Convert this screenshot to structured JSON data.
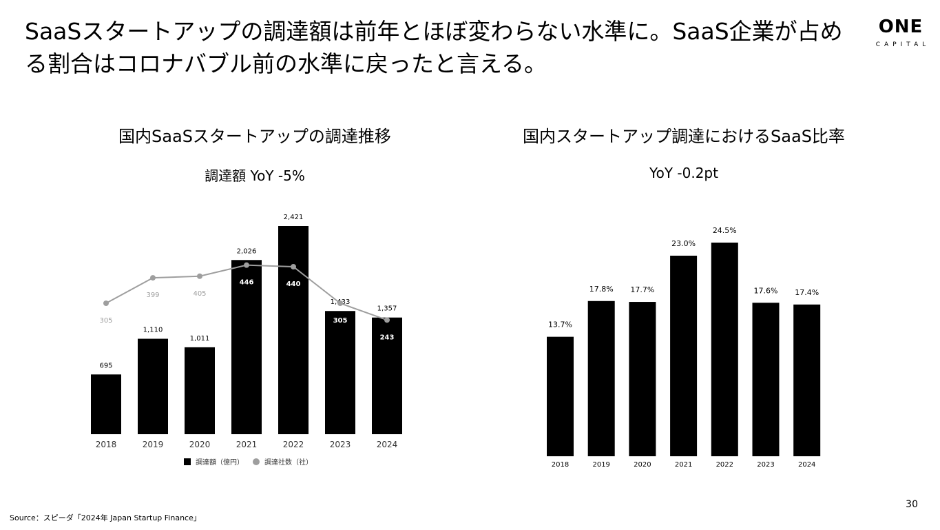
{
  "headline": "SaaSスタートアップの調達額は前年とほぼ変わらない水準に。SaaS企業が占める割合はコロナバブル前の水準に戻ったと言える。",
  "logo": {
    "word": "ONE",
    "sub": "CAPITAL"
  },
  "page_number": "30",
  "source": "Source：スピーダ「2024年 Japan Startup Finance」",
  "chart_data": [
    {
      "type": "bar",
      "title": "国内SaaSスタートアップの調達推移",
      "subtitle": "調達額 YoY -5%",
      "categories": [
        "2018",
        "2019",
        "2020",
        "2021",
        "2022",
        "2023",
        "2024"
      ],
      "series": [
        {
          "name": "調達額（億円）",
          "kind": "bar",
          "values": [
            695,
            1110,
            1011,
            2026,
            2421,
            1433,
            1357
          ],
          "labels": [
            "695",
            "1,110",
            "1,011",
            "2,026",
            "2,421",
            "1,433",
            "1,357"
          ],
          "color": "#000000"
        },
        {
          "name": "調達社数（社）",
          "kind": "line",
          "values": [
            305,
            399,
            405,
            446,
            440,
            305,
            243
          ],
          "labels": [
            "305",
            "399",
            "405",
            "446",
            "440",
            "305",
            "243"
          ],
          "color": "#9e9e9e"
        }
      ],
      "ylim": [
        0,
        2421
      ],
      "y2lim": [
        0,
        446
      ],
      "legend": "bottom",
      "grid": false
    },
    {
      "type": "bar",
      "title": "国内スタートアップ調達におけるSaaS比率",
      "subtitle": "YoY -0.2pt",
      "categories": [
        "2018",
        "2019",
        "2020",
        "2021",
        "2022",
        "2023",
        "2024"
      ],
      "series": [
        {
          "name": "SaaS比率",
          "values": [
            13.7,
            17.8,
            17.7,
            23.0,
            24.5,
            17.6,
            17.4
          ],
          "labels": [
            "13.7%",
            "17.8%",
            "17.7%",
            "23.0%",
            "24.5%",
            "17.6%",
            "17.4%"
          ],
          "color": "#000000"
        }
      ],
      "ylim": [
        0,
        24.5
      ],
      "legend": "none",
      "grid": false
    }
  ]
}
